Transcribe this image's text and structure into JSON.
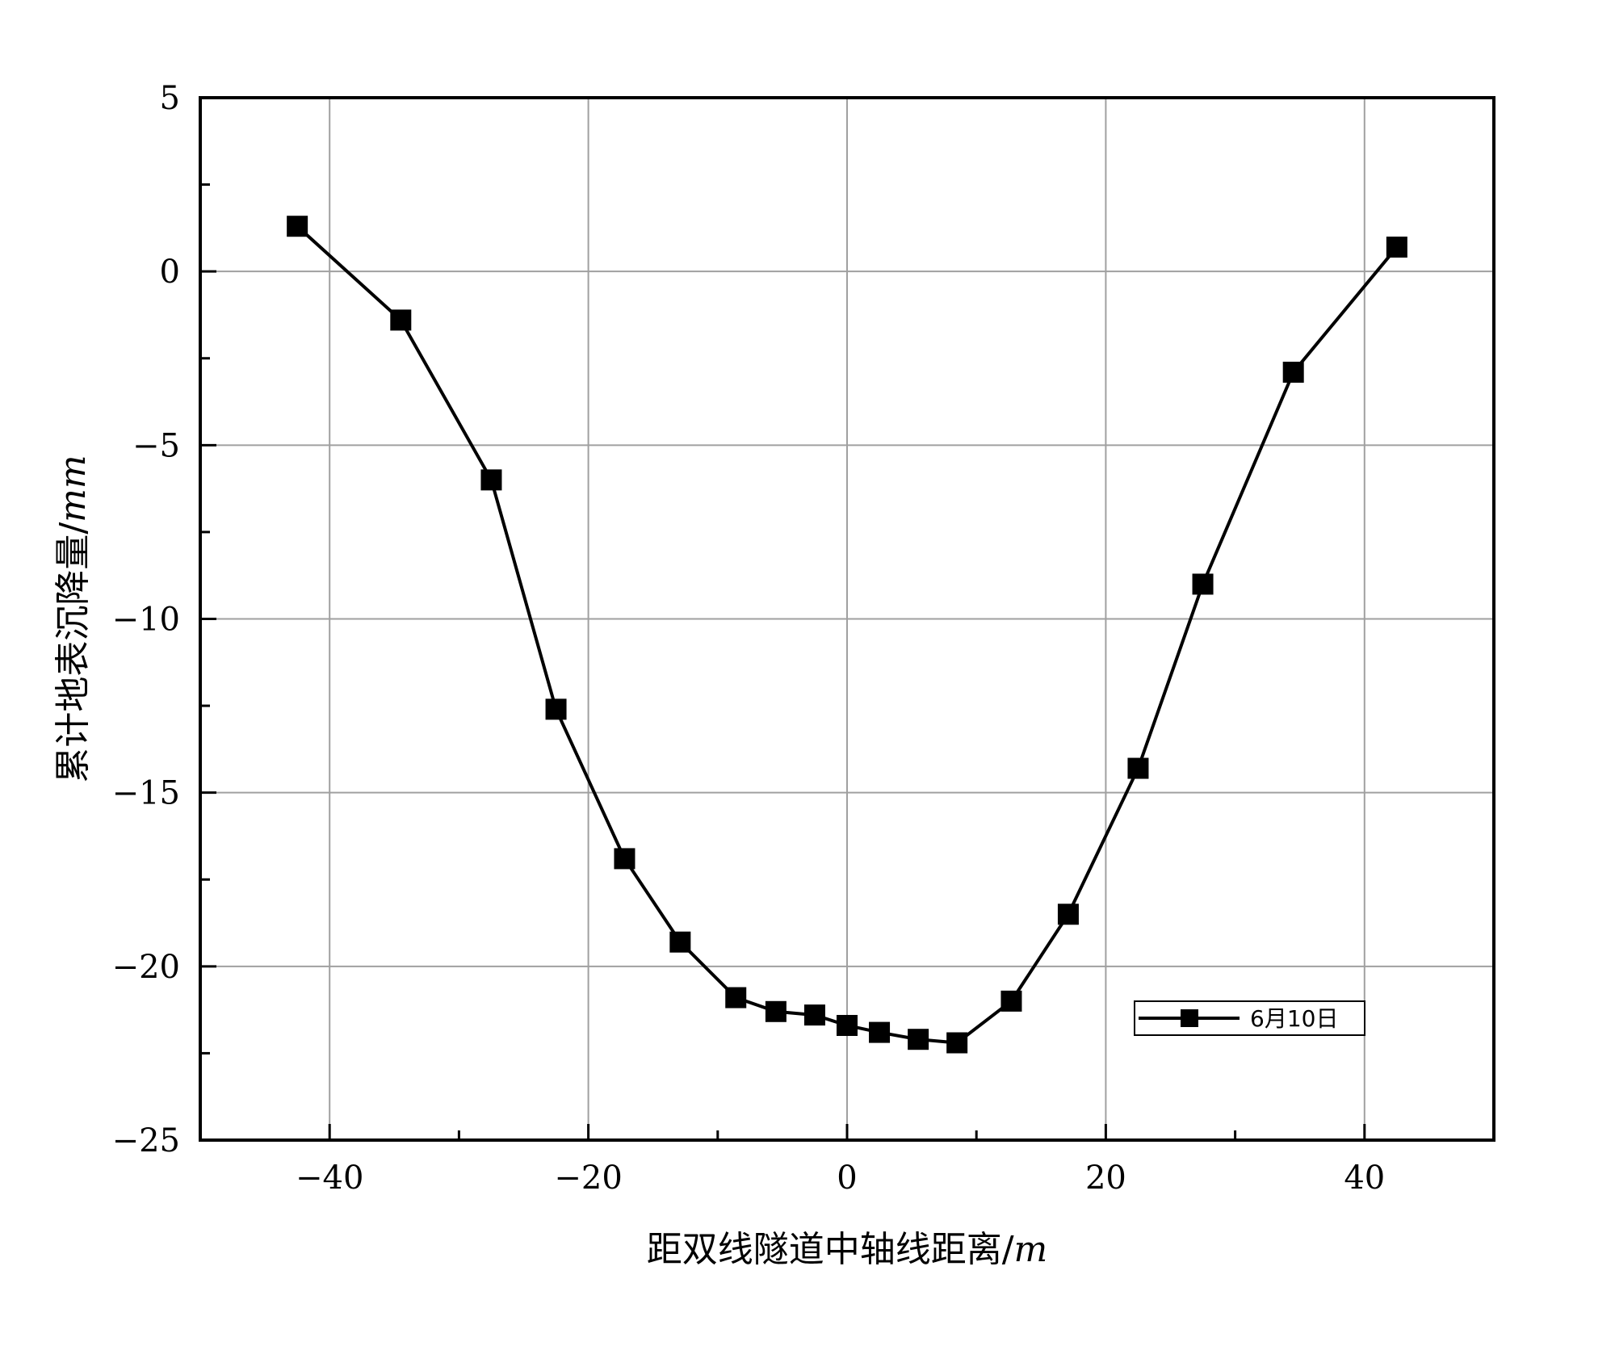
{
  "chart_data": {
    "type": "line",
    "title": "",
    "xlabel": "距双线隧道中轴线距离/",
    "xlabel_unit": "m",
    "ylabel": "累计地表沉降量/",
    "ylabel_unit": "mm",
    "xlim": [
      -50,
      50
    ],
    "ylim": [
      -25,
      5
    ],
    "xticks": [
      -40,
      -20,
      0,
      20,
      40
    ],
    "xtick_labels": [
      "−40",
      "−20",
      "0",
      "20",
      "40"
    ],
    "yticks": [
      5,
      0,
      -5,
      -10,
      -15,
      -20,
      -25
    ],
    "ytick_labels": [
      "5",
      "0",
      "−5",
      "−10",
      "−15",
      "−20",
      "−25"
    ],
    "grid": true,
    "legend_position": "bottom-right",
    "series": [
      {
        "name": "6月10日",
        "color": "#000000",
        "marker": "square",
        "x": [
          -42.5,
          -34.5,
          -27.5,
          -22.5,
          -17.2,
          -12.9,
          -8.6,
          -5.5,
          -2.5,
          0,
          2.5,
          5.5,
          8.5,
          12.7,
          17.1,
          22.5,
          27.5,
          34.5,
          42.5
        ],
        "y": [
          1.3,
          -1.4,
          -6.0,
          -12.6,
          -16.9,
          -19.3,
          -20.9,
          -21.3,
          -21.4,
          -21.7,
          -21.9,
          -22.1,
          -22.2,
          -21.0,
          -18.5,
          -14.3,
          -9.0,
          -2.9,
          0.7
        ]
      }
    ]
  }
}
